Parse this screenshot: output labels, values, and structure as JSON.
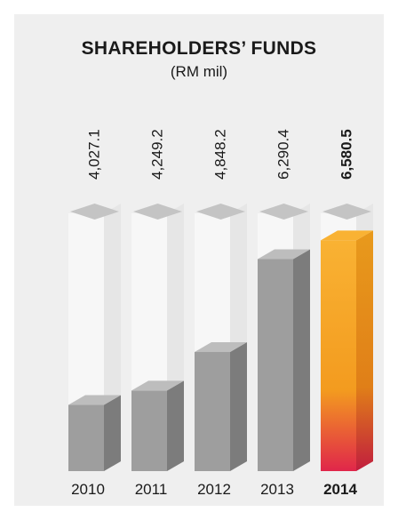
{
  "chart_data": {
    "type": "bar",
    "title": "SHAREHOLDERS’ FUNDS",
    "subtitle": "(RM mil)",
    "categories": [
      "2010",
      "2011",
      "2012",
      "2013",
      "2014"
    ],
    "values": [
      4027.1,
      4249.2,
      4848.2,
      6290.4,
      6580.5
    ],
    "value_labels": [
      "4,027.1",
      "4,249.2",
      "4,848.2",
      "6,290.4",
      "6,580.5"
    ],
    "highlight_index": 4,
    "colors": {
      "bar_front": "#9e9e9e",
      "bar_side": "#7c7c7c",
      "bar_top": "#bdbdbd",
      "tube_front": "#f7f7f7",
      "tube_side": "#e6e6e6",
      "tube_cap": "#c4c4c4",
      "highlight_top": "#f9b233",
      "highlight_mid": "#f39b1f",
      "highlight_bottom": "#e0264a"
    }
  }
}
